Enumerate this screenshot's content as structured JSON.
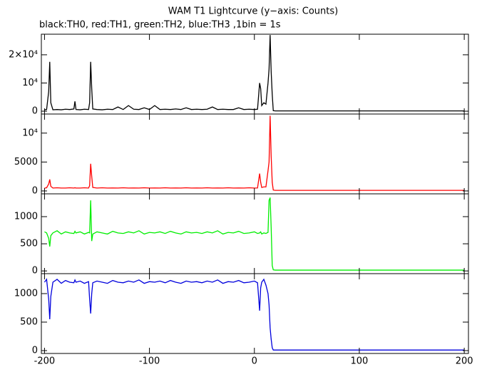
{
  "chart_data": [
    {
      "type": "line",
      "title": "WAM T1 Lightcurve (y−axis: Counts)",
      "subtitle": "black:TH0, red:TH1, green:TH2, blue:TH3 ,1bin = 1s",
      "color": "#000000",
      "x": [
        -200,
        -198,
        -196,
        -195,
        -194,
        -192,
        -188,
        -184,
        -180,
        -176,
        -172,
        -171,
        -170,
        -166,
        -162,
        -158,
        -157,
        -156,
        -155,
        -154,
        -150,
        -145,
        -140,
        -135,
        -130,
        -125,
        -120,
        -115,
        -110,
        -105,
        -100,
        -95,
        -90,
        -85,
        -80,
        -75,
        -70,
        -65,
        -60,
        -55,
        -50,
        -45,
        -40,
        -35,
        -30,
        -25,
        -20,
        -15,
        -10,
        -5,
        0,
        3,
        5,
        6,
        7,
        9,
        11,
        13,
        14,
        15,
        16,
        17,
        18,
        20,
        30,
        50,
        75,
        100,
        125,
        150,
        175,
        200
      ],
      "values": [
        500,
        600,
        7000,
        17500,
        3000,
        500,
        600,
        500,
        700,
        600,
        800,
        3500,
        600,
        500,
        700,
        600,
        3000,
        17500,
        8000,
        800,
        600,
        500,
        700,
        600,
        1500,
        600,
        2000,
        700,
        600,
        1200,
        600,
        2000,
        600,
        700,
        600,
        800,
        600,
        1200,
        600,
        700,
        600,
        700,
        1500,
        600,
        700,
        600,
        600,
        1200,
        600,
        700,
        600,
        700,
        10000,
        8000,
        2000,
        3000,
        2500,
        10000,
        15000,
        27000,
        14000,
        6000,
        200,
        100,
        100,
        100,
        100,
        100,
        100,
        100,
        100,
        100
      ],
      "xlim": [
        -203,
        204
      ],
      "ylim": [
        -1000,
        27300
      ],
      "xticks": [
        -200,
        -100,
        0,
        100,
        200
      ],
      "yticks": [
        0,
        {
          "value": 10000,
          "label": "10⁴"
        },
        {
          "value": 20000,
          "label": "2×10⁴"
        }
      ]
    },
    {
      "type": "line",
      "color": "#ff0000",
      "x": [
        -200,
        -198,
        -196,
        -195,
        -194,
        -192,
        -188,
        -184,
        -180,
        -176,
        -172,
        -171,
        -170,
        -166,
        -162,
        -158,
        -157,
        -156,
        -155,
        -154,
        -150,
        -145,
        -140,
        -135,
        -130,
        -125,
        -120,
        -115,
        -110,
        -105,
        -100,
        -95,
        -90,
        -85,
        -80,
        -75,
        -70,
        -65,
        -60,
        -55,
        -50,
        -45,
        -40,
        -35,
        -30,
        -25,
        -20,
        -15,
        -10,
        -5,
        0,
        3,
        5,
        6,
        7,
        9,
        11,
        13,
        14,
        15,
        16,
        17,
        18,
        20,
        30,
        50,
        75,
        100,
        125,
        150,
        175,
        200
      ],
      "values": [
        500,
        550,
        1200,
        2000,
        800,
        500,
        550,
        500,
        500,
        550,
        500,
        550,
        500,
        500,
        550,
        500,
        900,
        4700,
        2500,
        600,
        500,
        550,
        500,
        520,
        500,
        550,
        500,
        520,
        500,
        550,
        500,
        520,
        500,
        550,
        500,
        520,
        500,
        550,
        500,
        520,
        500,
        550,
        500,
        520,
        500,
        550,
        500,
        520,
        500,
        550,
        500,
        520,
        3000,
        1500,
        600,
        700,
        700,
        3500,
        5000,
        13000,
        6000,
        1500,
        150,
        100,
        100,
        100,
        100,
        100,
        100,
        100,
        100,
        100
      ],
      "xlim": [
        -203,
        204
      ],
      "ylim": [
        -500,
        13300
      ],
      "xticks": [
        -200,
        -100,
        0,
        100,
        200
      ],
      "yticks": [
        0,
        5000,
        {
          "value": 10000,
          "label": "10⁴"
        }
      ]
    },
    {
      "type": "line",
      "color": "#00ee00",
      "x": [
        -200,
        -198,
        -196,
        -195,
        -194,
        -192,
        -188,
        -184,
        -180,
        -176,
        -172,
        -171,
        -170,
        -166,
        -162,
        -158,
        -157,
        -156,
        -155,
        -154,
        -150,
        -145,
        -140,
        -135,
        -130,
        -125,
        -120,
        -115,
        -110,
        -105,
        -100,
        -95,
        -90,
        -85,
        -80,
        -75,
        -70,
        -65,
        -60,
        -55,
        -50,
        -45,
        -40,
        -35,
        -30,
        -25,
        -20,
        -15,
        -10,
        -5,
        0,
        3,
        5,
        6,
        7,
        9,
        11,
        13,
        14,
        15,
        16,
        17,
        18,
        20,
        30,
        50,
        75,
        100,
        125,
        150,
        175,
        200
      ],
      "values": [
        720,
        700,
        600,
        450,
        650,
        700,
        740,
        680,
        720,
        700,
        690,
        730,
        700,
        720,
        680,
        710,
        700,
        1300,
        550,
        680,
        720,
        700,
        680,
        730,
        700,
        690,
        720,
        700,
        740,
        680,
        710,
        700,
        720,
        690,
        730,
        700,
        680,
        720,
        700,
        710,
        690,
        720,
        700,
        740,
        680,
        710,
        700,
        730,
        690,
        700,
        720,
        690,
        700,
        720,
        680,
        700,
        690,
        710,
        1300,
        1350,
        800,
        100,
        20,
        15,
        15,
        15,
        15,
        15,
        15,
        15,
        15,
        15
      ],
      "xlim": [
        -203,
        204
      ],
      "ylim": [
        -50,
        1420
      ],
      "xticks": [
        -200,
        -100,
        0,
        100,
        200
      ],
      "yticks": [
        0,
        500,
        1000
      ]
    },
    {
      "type": "line",
      "color": "#0000dd",
      "x": [
        -200,
        -198,
        -196,
        -195,
        -194,
        -192,
        -188,
        -184,
        -180,
        -176,
        -172,
        -171,
        -170,
        -166,
        -162,
        -158,
        -157,
        -156,
        -155,
        -154,
        -150,
        -145,
        -140,
        -135,
        -130,
        -125,
        -120,
        -115,
        -110,
        -105,
        -100,
        -95,
        -90,
        -85,
        -80,
        -75,
        -70,
        -65,
        -60,
        -55,
        -50,
        -45,
        -40,
        -35,
        -30,
        -25,
        -20,
        -15,
        -10,
        -5,
        0,
        3,
        5,
        6,
        7,
        9,
        11,
        13,
        14,
        15,
        16,
        17,
        18,
        20,
        30,
        50,
        75,
        100,
        125,
        150,
        175,
        200
      ],
      "values": [
        1200,
        1250,
        900,
        550,
        950,
        1200,
        1250,
        1180,
        1230,
        1200,
        1190,
        1240,
        1200,
        1220,
        1180,
        1210,
        900,
        650,
        1000,
        1190,
        1220,
        1200,
        1180,
        1230,
        1200,
        1190,
        1220,
        1200,
        1240,
        1180,
        1210,
        1200,
        1220,
        1190,
        1230,
        1200,
        1180,
        1220,
        1200,
        1210,
        1190,
        1220,
        1200,
        1240,
        1180,
        1210,
        1200,
        1230,
        1190,
        1200,
        1220,
        1190,
        700,
        1100,
        1200,
        1250,
        1150,
        1000,
        800,
        400,
        200,
        50,
        10,
        10,
        10,
        10,
        10,
        10,
        10,
        10,
        10,
        10
      ],
      "xlim": [
        -203,
        204
      ],
      "ylim": [
        -50,
        1350
      ],
      "xticks": [
        -200,
        -100,
        0,
        100,
        200
      ],
      "yticks": [
        0,
        500,
        1000
      ]
    }
  ]
}
